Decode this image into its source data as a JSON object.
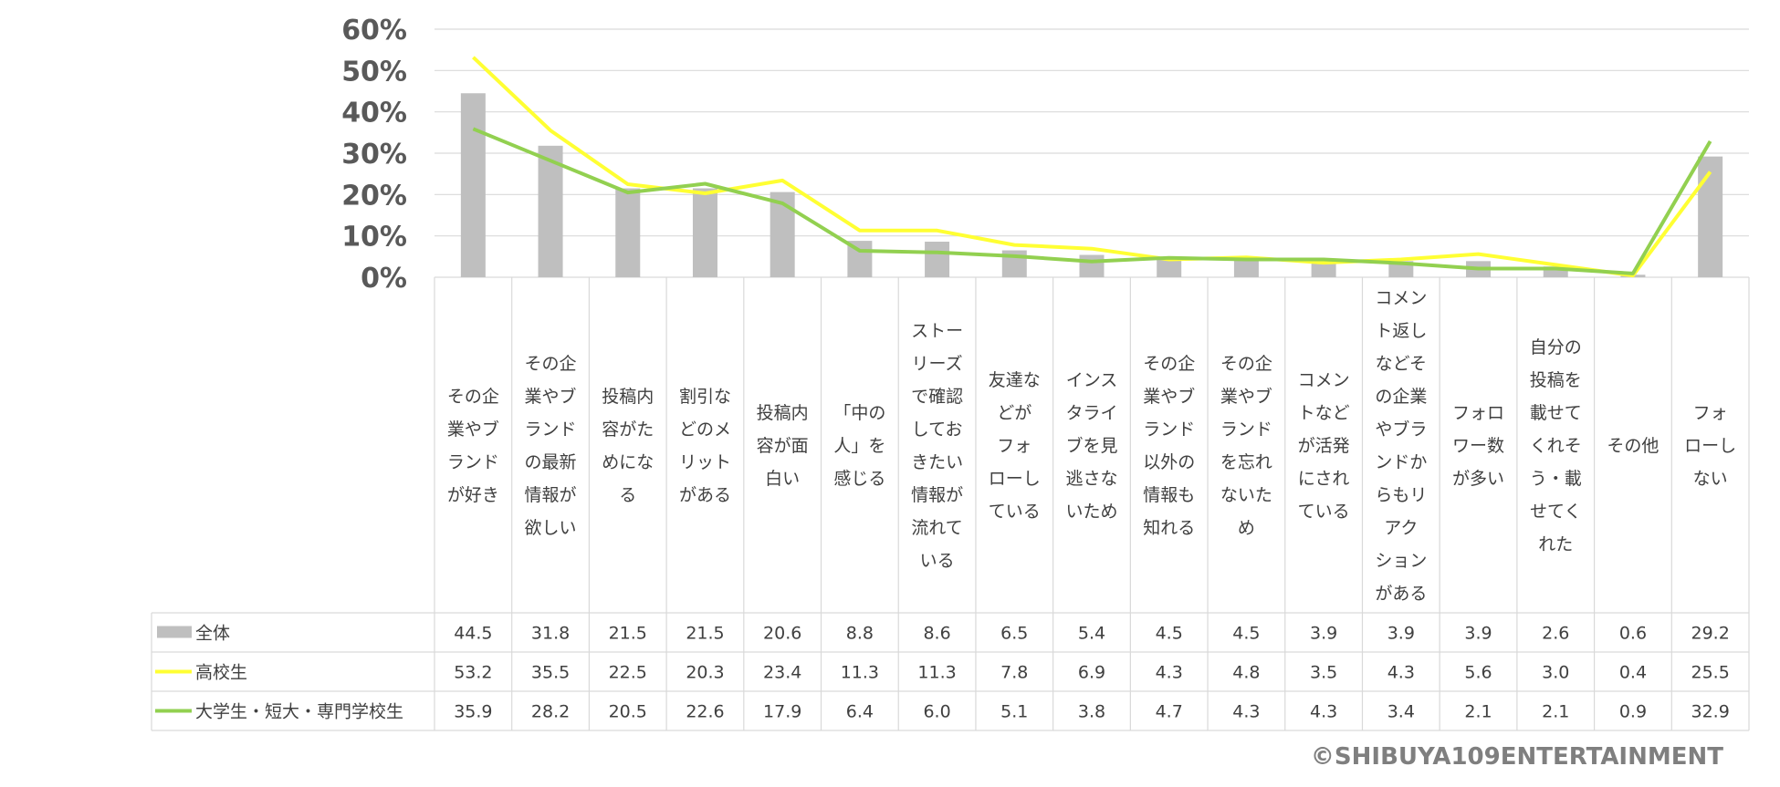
{
  "chart_data": {
    "type": "bar",
    "ylim": [
      0,
      60
    ],
    "yticks": [
      "0%",
      "10%",
      "20%",
      "30%",
      "40%",
      "50%",
      "60%"
    ],
    "grid": true,
    "legend": "table-left",
    "categories": [
      "その企業やブランドが好き",
      "その企業やブランドの最新情報が欲しい",
      "投稿内容がためになる",
      "割引などのメリットがある",
      "投稿内容が面白い",
      "「中の人」を感じる",
      "ストーリーズで確認しておきたい情報が流れている",
      "友達などがフォローしている",
      "インスタライブを見逃さないため",
      "その企業やブランド以外の情報も知れる",
      "その企業やブランドを忘れないため",
      "コメントなどが活発にされている",
      "コメント返しなどその企業やブランドからもリアクションがある",
      "フォロワー数が多い",
      "自分の投稿を載せてくれそう・載せてくれた",
      "その他",
      "フォローしない"
    ],
    "category_lines": [
      [
        "その企",
        "業やブ",
        "ランド",
        "が好き"
      ],
      [
        "その企",
        "業やブ",
        "ランド",
        "の最新",
        "情報が",
        "欲しい"
      ],
      [
        "投稿内",
        "容がた",
        "めにな",
        "る"
      ],
      [
        "割引な",
        "どのメ",
        "リット",
        "がある"
      ],
      [
        "投稿内",
        "容が面",
        "白い"
      ],
      [
        "「中の",
        "人」を",
        "感じる"
      ],
      [
        "ストー",
        "リーズ",
        "で確認",
        "してお",
        "きたい",
        "情報が",
        "流れて",
        "いる"
      ],
      [
        "友達な",
        "どが",
        "フォ",
        "ローし",
        "ている"
      ],
      [
        "インス",
        "タライ",
        "ブを見",
        "逃さな",
        "いため"
      ],
      [
        "その企",
        "業やブ",
        "ランド",
        "以外の",
        "情報も",
        "知れる"
      ],
      [
        "その企",
        "業やブ",
        "ランド",
        "を忘れ",
        "ないた",
        "め"
      ],
      [
        "コメン",
        "トなど",
        "が活発",
        "にされ",
        "ている"
      ],
      [
        "コメン",
        "ト返し",
        "などそ",
        "の企業",
        "やブラ",
        "ンドか",
        "らもリ",
        "アク",
        "ション",
        "がある"
      ],
      [
        "フォロ",
        "ワー数",
        "が多い"
      ],
      [
        "自分の",
        "投稿を",
        "載せて",
        "くれそ",
        "う・載",
        "せてく",
        "れた"
      ],
      [
        "その他"
      ],
      [
        "フォ",
        "ローし",
        "ない"
      ]
    ],
    "series": [
      {
        "name": "全体",
        "type": "bar",
        "color": "#bfbfbf",
        "values": [
          44.5,
          31.8,
          21.5,
          21.5,
          20.6,
          8.8,
          8.6,
          6.5,
          5.4,
          4.5,
          4.5,
          3.9,
          3.9,
          3.9,
          2.6,
          0.6,
          29.2
        ],
        "labels": [
          "44.5",
          "31.8",
          "21.5",
          "21.5",
          "20.6",
          "8.8",
          "8.6",
          "6.5",
          "5.4",
          "4.5",
          "4.5",
          "3.9",
          "3.9",
          "3.9",
          "2.6",
          "0.6",
          "29.2"
        ]
      },
      {
        "name": "高校生",
        "type": "line",
        "color": "#ffff33",
        "values": [
          53.2,
          35.5,
          22.5,
          20.3,
          23.4,
          11.3,
          11.3,
          7.8,
          6.9,
          4.3,
          4.8,
          3.5,
          4.3,
          5.6,
          3.0,
          0.4,
          25.5
        ],
        "labels": [
          "53.2",
          "35.5",
          "22.5",
          "20.3",
          "23.4",
          "11.3",
          "11.3",
          "7.8",
          "6.9",
          "4.3",
          "4.8",
          "3.5",
          "4.3",
          "5.6",
          "3.0",
          "0.4",
          "25.5"
        ]
      },
      {
        "name": "大学生・短大・専門学校生",
        "type": "line",
        "color": "#92d050",
        "values": [
          35.9,
          28.2,
          20.5,
          22.6,
          17.9,
          6.4,
          6.0,
          5.1,
          3.8,
          4.7,
          4.3,
          4.3,
          3.4,
          2.1,
          2.1,
          0.9,
          32.9
        ],
        "labels": [
          "35.9",
          "28.2",
          "20.5",
          "22.6",
          "17.9",
          "6.4",
          "6.0",
          "5.1",
          "3.8",
          "4.7",
          "4.3",
          "4.3",
          "3.4",
          "2.1",
          "2.1",
          "0.9",
          "32.9"
        ]
      }
    ]
  },
  "credit": "©SHIBUYA109ENTERTAINMENT",
  "colors": {
    "grid": "#d9d9d9",
    "text": "#404040",
    "axis_text": "#595959"
  }
}
